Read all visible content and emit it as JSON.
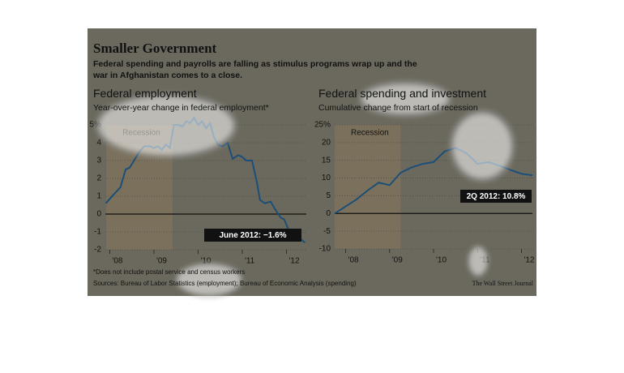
{
  "title": "Smaller Government",
  "subtitle": "Federal spending and payrolls are falling as stimulus programs wrap up and the war in Afghanistan comes to a close.",
  "footnote": "*Does not include postal service and census workers",
  "source": "Sources: Bureau of Labor Statistics (employment); Bureau of Economic Analysis (spending)",
  "credit": "The Wall Street Journal",
  "chart_data": [
    {
      "type": "line",
      "title": "Federal employment",
      "subtitle": "Year-over-year change in federal employment*",
      "x": [
        2007.91,
        2008.09,
        2008.24,
        2008.36,
        2008.45,
        2008.55,
        2008.67,
        2008.78,
        2008.91,
        2009.0,
        2009.09,
        2009.18,
        2009.27,
        2009.36,
        2009.45,
        2009.55,
        2009.64,
        2009.73,
        2009.82,
        2009.91,
        2010.0,
        2010.09,
        2010.18,
        2010.27,
        2010.36,
        2010.45,
        2010.55,
        2010.67,
        2010.78,
        2010.91,
        2011.0,
        2011.09,
        2011.22,
        2011.33,
        2011.4,
        2011.51,
        2011.64,
        2011.76,
        2011.87,
        2011.95,
        2012.05,
        2012.18,
        2012.27,
        2012.42
      ],
      "values": [
        0.6,
        1.1,
        1.5,
        2.5,
        2.6,
        3.0,
        3.5,
        3.8,
        3.8,
        3.7,
        3.8,
        3.6,
        3.9,
        3.7,
        5.0,
        5.0,
        4.9,
        5.2,
        5.1,
        5.4,
        5.0,
        5.2,
        4.8,
        5.1,
        4.3,
        3.9,
        3.8,
        4.0,
        3.1,
        3.3,
        3.2,
        3.0,
        3.0,
        1.8,
        0.8,
        0.6,
        0.7,
        0.2,
        -0.2,
        -0.3,
        -0.9,
        -1.1,
        -1.3,
        -1.6
      ],
      "color": "#1b4f78",
      "xlim": [
        2007.9,
        2012.45
      ],
      "xticks": [
        {
          "value": 2008,
          "label": "'08"
        },
        {
          "value": 2009,
          "label": "'09"
        },
        {
          "value": 2010,
          "label": "'10"
        },
        {
          "value": 2011,
          "label": "'11"
        },
        {
          "value": 2012,
          "label": "'12"
        }
      ],
      "ylim": [
        -2,
        5
      ],
      "yticks": [
        -2,
        -1,
        0,
        1,
        2,
        3,
        4,
        {
          "value": 5,
          "label": "5%"
        }
      ],
      "grid": true,
      "recession": {
        "label": "Recession",
        "start": 2007.92,
        "end": 2009.42
      },
      "annotation": "June 2012: −1.6%"
    },
    {
      "type": "line",
      "title": "Federal spending and investment",
      "subtitle": "Cumulative change from start of recession",
      "x": [
        2007.75,
        2008.0,
        2008.25,
        2008.5,
        2008.75,
        2009.0,
        2009.25,
        2009.5,
        2009.75,
        2010.0,
        2010.25,
        2010.5,
        2010.75,
        2011.0,
        2011.25,
        2011.5,
        2011.75,
        2012.0,
        2012.25
      ],
      "values": [
        0,
        2,
        4,
        6.5,
        8.7,
        8,
        11.5,
        13,
        14,
        14.5,
        17.5,
        18.5,
        17,
        14,
        14.5,
        13.5,
        12.3,
        11.2,
        10.8
      ],
      "color": "#1b4f78",
      "xlim": [
        2007.75,
        2012.25
      ],
      "xticks": [
        {
          "value": 2008,
          "label": "'08"
        },
        {
          "value": 2009,
          "label": "'09"
        },
        {
          "value": 2010,
          "label": "'10"
        },
        {
          "value": 2011,
          "label": "'11"
        },
        {
          "value": 2012,
          "label": "'12"
        }
      ],
      "ylim": [
        -10,
        25
      ],
      "yticks": [
        -10,
        -5,
        0,
        5,
        10,
        15,
        20,
        {
          "value": 25,
          "label": "25%"
        }
      ],
      "grid": true,
      "recession": {
        "label": "Recession",
        "start": 2007.75,
        "end": 2009.25
      },
      "annotation": "2Q 2012: 10.8%"
    }
  ]
}
